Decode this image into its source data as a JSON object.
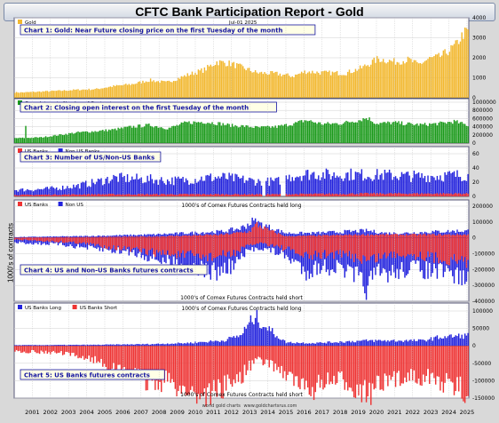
{
  "title": "CFTC Bank Participation Report - Gold",
  "y_axis_label": "1000's of contracts",
  "x_axis": {
    "years": [
      "2001",
      "2002",
      "2003",
      "2004",
      "2005",
      "2006",
      "2007",
      "2008",
      "2009",
      "2010",
      "2011",
      "2012",
      "2013",
      "2014",
      "2015",
      "2016",
      "2017",
      "2018",
      "2019",
      "2020",
      "2021",
      "2022",
      "2023",
      "2024",
      "2025"
    ]
  },
  "credit": "world gold charts",
  "credit_url": "www.goldchartsrus.com",
  "colors": {
    "gold": "#f2b82f",
    "green": "#1a9a1a",
    "blue": "#2222dd",
    "red": "#ee3333",
    "title_fill": "#ffffe6",
    "title_text": "#1414a0"
  },
  "chart_data": [
    {
      "id": "chart1",
      "type": "bar",
      "title": "Chart 1: Gold: Near Future closing price on the first Tuesday of the month",
      "legend": [
        {
          "label": "Gold",
          "color": "#f2b82f"
        }
      ],
      "date_label": "Jul-01  2025",
      "yticks": [
        "0",
        "1000",
        "2000",
        "3000",
        "4000"
      ],
      "ylim": [
        0,
        4000
      ],
      "x_start": 2000.5,
      "x_end": 2025.6,
      "anchors": [
        [
          2000.5,
          270
        ],
        [
          2001.0,
          265
        ],
        [
          2002.0,
          310
        ],
        [
          2003.0,
          350
        ],
        [
          2004.0,
          400
        ],
        [
          2005.0,
          430
        ],
        [
          2006.0,
          580
        ],
        [
          2007.0,
          680
        ],
        [
          2008.0,
          880
        ],
        [
          2008.9,
          760
        ],
        [
          2009.5,
          950
        ],
        [
          2010.0,
          1120
        ],
        [
          2011.0,
          1400
        ],
        [
          2011.7,
          1800
        ],
        [
          2012.5,
          1700
        ],
        [
          2013.3,
          1450
        ],
        [
          2013.9,
          1250
        ],
        [
          2015.0,
          1200
        ],
        [
          2015.9,
          1080
        ],
        [
          2016.6,
          1320
        ],
        [
          2017.5,
          1250
        ],
        [
          2018.8,
          1230
        ],
        [
          2019.7,
          1500
        ],
        [
          2020.6,
          1950
        ],
        [
          2021.5,
          1800
        ],
        [
          2022.3,
          1900
        ],
        [
          2022.8,
          1650
        ],
        [
          2023.4,
          1950
        ],
        [
          2024.0,
          2050
        ],
        [
          2024.5,
          2350
        ],
        [
          2024.9,
          2650
        ],
        [
          2025.3,
          3200
        ],
        [
          2025.6,
          3350
        ]
      ]
    },
    {
      "id": "chart2",
      "type": "bar",
      "title": "Chart 2: Closing open interest on the first Tuesday of the month",
      "legend": [
        {
          "label": "Open Interest - Number of Contracts",
          "color": "#1a9a1a"
        }
      ],
      "yticks": [
        "0",
        "200000",
        "400000",
        "600000",
        "800000",
        "1000000"
      ],
      "ylim": [
        0,
        1000000
      ],
      "x_start": 2000.5,
      "x_end": 2025.6,
      "anchors": [
        [
          2000.5,
          120000
        ],
        [
          2002.0,
          140000
        ],
        [
          2003.0,
          200000
        ],
        [
          2004.0,
          260000
        ],
        [
          2005.0,
          290000
        ],
        [
          2006.0,
          330000
        ],
        [
          2007.0,
          400000
        ],
        [
          2008.0,
          440000
        ],
        [
          2009.0,
          360000
        ],
        [
          2010.0,
          500000
        ],
        [
          2011.0,
          520000
        ],
        [
          2011.8,
          480000
        ],
        [
          2012.5,
          430000
        ],
        [
          2013.0,
          420000
        ],
        [
          2014.0,
          380000
        ],
        [
          2015.0,
          400000
        ],
        [
          2016.0,
          480000
        ],
        [
          2016.6,
          560000
        ],
        [
          2017.5,
          470000
        ],
        [
          2018.5,
          480000
        ],
        [
          2019.5,
          560000
        ],
        [
          2020.0,
          620000
        ],
        [
          2020.5,
          480000
        ],
        [
          2021.5,
          500000
        ],
        [
          2022.5,
          460000
        ],
        [
          2023.0,
          450000
        ],
        [
          2024.0,
          480000
        ],
        [
          2024.8,
          530000
        ],
        [
          2025.6,
          430000
        ]
      ]
    },
    {
      "id": "chart3",
      "type": "bar",
      "title": "Chart 3: Number of US/Non-US Banks",
      "legend": [
        {
          "label": "US Banks",
          "color": "#ee3333"
        },
        {
          "label": "Non US Banks",
          "color": "#2222dd"
        }
      ],
      "yticks": [
        "0",
        "20",
        "40",
        "60"
      ],
      "ylim": [
        0,
        60
      ],
      "x_start": 2000.5,
      "x_end": 2025.6,
      "gaps": [
        [
          2014.2,
          2014.35
        ],
        [
          2015.2,
          2015.45
        ]
      ],
      "series": [
        {
          "name": "Non US Banks",
          "color": "#2222dd",
          "anchors": [
            [
              2000.5,
              9
            ],
            [
              2002.0,
              10
            ],
            [
              2003.0,
              12
            ],
            [
              2004.0,
              15
            ],
            [
              2005.0,
              20
            ],
            [
              2006.0,
              26
            ],
            [
              2007.0,
              25
            ],
            [
              2008.0,
              24
            ],
            [
              2009.0,
              22
            ],
            [
              2010.0,
              23
            ],
            [
              2011.0,
              26
            ],
            [
              2012.0,
              27
            ],
            [
              2013.0,
              24
            ],
            [
              2014.0,
              21
            ],
            [
              2015.0,
              21
            ],
            [
              2016.0,
              30
            ],
            [
              2017.0,
              32
            ],
            [
              2018.0,
              30
            ],
            [
              2019.0,
              31
            ],
            [
              2020.0,
              30
            ],
            [
              2021.0,
              30
            ],
            [
              2022.0,
              29
            ],
            [
              2023.0,
              28
            ],
            [
              2024.0,
              29
            ],
            [
              2025.6,
              30
            ]
          ]
        },
        {
          "name": "US Banks",
          "color": "#ee3333",
          "anchors": [
            [
              2000.5,
              2
            ],
            [
              2005.0,
              3
            ],
            [
              2010.0,
              3
            ],
            [
              2015.0,
              3
            ],
            [
              2020.0,
              4
            ],
            [
              2025.6,
              4
            ]
          ]
        }
      ]
    },
    {
      "id": "chart4",
      "type": "bar",
      "title": "Chart 4: US and Non-US Banks futures contracts",
      "legend": [
        {
          "label": "US Banks",
          "color": "#ee3333"
        },
        {
          "label": "Non US",
          "color": "#2222dd"
        }
      ],
      "top_note": "1000's of Comex Futures Contracts held long",
      "bottom_note": "1000's of Comex Futures Contracts held short",
      "yticks": [
        "200000",
        "100000",
        "0",
        "-100000",
        "-200000",
        "-300000",
        "-400000"
      ],
      "ylim": [
        -400000,
        200000
      ],
      "x_start": 2000.5,
      "x_end": 2025.6,
      "series": [
        {
          "name": "Non US long",
          "color": "#2222dd",
          "anchors": [
            [
              2000.5,
              5000
            ],
            [
              2004.0,
              10000
            ],
            [
              2008.0,
              20000
            ],
            [
              2010.0,
              30000
            ],
            [
              2012.0,
              40000
            ],
            [
              2013.0,
              60000
            ],
            [
              2013.7,
              105000
            ],
            [
              2014.5,
              70000
            ],
            [
              2015.5,
              30000
            ],
            [
              2017.0,
              30000
            ],
            [
              2019.0,
              40000
            ],
            [
              2020.0,
              45000
            ],
            [
              2021.0,
              30000
            ],
            [
              2022.0,
              30000
            ],
            [
              2023.0,
              35000
            ],
            [
              2024.0,
              40000
            ],
            [
              2025.6,
              45000
            ]
          ]
        },
        {
          "name": "US long",
          "color": "#ee3333",
          "anchors": [
            [
              2000.5,
              2000
            ],
            [
              2008.0,
              8000
            ],
            [
              2012.0,
              20000
            ],
            [
              2013.5,
              40000
            ],
            [
              2013.9,
              85000
            ],
            [
              2014.5,
              50000
            ],
            [
              2015.5,
              10000
            ],
            [
              2020.0,
              20000
            ],
            [
              2025.6,
              20000
            ]
          ]
        },
        {
          "name": "Non US short",
          "color": "#2222dd",
          "anchors": [
            [
              2000.5,
              -30000
            ],
            [
              2003.0,
              -40000
            ],
            [
              2005.0,
              -70000
            ],
            [
              2006.0,
              -80000
            ],
            [
              2007.0,
              -90000
            ],
            [
              2008.0,
              -120000
            ],
            [
              2009.0,
              -150000
            ],
            [
              2010.0,
              -170000
            ],
            [
              2011.0,
              -200000
            ],
            [
              2011.6,
              -220000
            ],
            [
              2012.5,
              -180000
            ],
            [
              2013.5,
              -80000
            ],
            [
              2014.0,
              -60000
            ],
            [
              2015.0,
              -90000
            ],
            [
              2016.0,
              -150000
            ],
            [
              2016.6,
              -210000
            ],
            [
              2017.5,
              -180000
            ],
            [
              2018.5,
              -190000
            ],
            [
              2019.5,
              -260000
            ],
            [
              2020.0,
              -310000
            ],
            [
              2020.5,
              -230000
            ],
            [
              2021.5,
              -220000
            ],
            [
              2022.5,
              -180000
            ],
            [
              2023.0,
              -200000
            ],
            [
              2024.0,
              -220000
            ],
            [
              2025.0,
              -240000
            ],
            [
              2025.6,
              -260000
            ]
          ]
        },
        {
          "name": "US short",
          "color": "#ee3333",
          "anchors": [
            [
              2000.5,
              -10000
            ],
            [
              2004.0,
              -30000
            ],
            [
              2006.0,
              -60000
            ],
            [
              2008.0,
              -90000
            ],
            [
              2010.0,
              -110000
            ],
            [
              2011.5,
              -120000
            ],
            [
              2012.5,
              -100000
            ],
            [
              2013.5,
              -50000
            ],
            [
              2014.0,
              -30000
            ],
            [
              2015.0,
              -50000
            ],
            [
              2016.0,
              -90000
            ],
            [
              2016.6,
              -120000
            ],
            [
              2018.0,
              -100000
            ],
            [
              2019.0,
              -110000
            ],
            [
              2020.0,
              -140000
            ],
            [
              2021.0,
              -110000
            ],
            [
              2022.0,
              -100000
            ],
            [
              2023.0,
              -110000
            ],
            [
              2024.0,
              -130000
            ],
            [
              2025.6,
              -150000
            ]
          ]
        }
      ]
    },
    {
      "id": "chart5",
      "type": "bar",
      "title": "Chart 5: US Banks futures contracts",
      "legend": [
        {
          "label": "US Banks Long",
          "color": "#2222dd"
        },
        {
          "label": "US Banks Short",
          "color": "#ee3333"
        }
      ],
      "top_note": "1000's of Comex Futures Contracts held long",
      "bottom_note": "1000's of Comex Futures Contracts held short",
      "yticks": [
        "100000",
        "50000",
        "0",
        "-50000",
        "-100000",
        "-150000"
      ],
      "ylim": [
        -150000,
        100000
      ],
      "x_start": 2000.5,
      "x_end": 2025.6,
      "series": [
        {
          "name": "US Banks Long",
          "color": "#2222dd",
          "anchors": [
            [
              2000.5,
              2000
            ],
            [
              2005.0,
              3000
            ],
            [
              2008.0,
              5000
            ],
            [
              2010.0,
              8000
            ],
            [
              2012.0,
              15000
            ],
            [
              2013.0,
              30000
            ],
            [
              2013.8,
              85000
            ],
            [
              2014.5,
              50000
            ],
            [
              2015.5,
              10000
            ],
            [
              2017.0,
              8000
            ],
            [
              2020.0,
              15000
            ],
            [
              2023.0,
              15000
            ],
            [
              2024.0,
              25000
            ],
            [
              2025.6,
              30000
            ]
          ]
        },
        {
          "name": "US Banks Short",
          "color": "#ee3333",
          "anchors": [
            [
              2000.5,
              -15000
            ],
            [
              2003.0,
              -20000
            ],
            [
              2005.0,
              -40000
            ],
            [
              2006.0,
              -70000
            ],
            [
              2007.0,
              -80000
            ],
            [
              2008.0,
              -110000
            ],
            [
              2009.0,
              -100000
            ],
            [
              2010.0,
              -130000
            ],
            [
              2011.0,
              -140000
            ],
            [
              2012.0,
              -120000
            ],
            [
              2013.0,
              -90000
            ],
            [
              2013.8,
              -40000
            ],
            [
              2014.5,
              -50000
            ],
            [
              2015.0,
              -60000
            ],
            [
              2016.0,
              -100000
            ],
            [
              2016.6,
              -130000
            ],
            [
              2017.5,
              -110000
            ],
            [
              2018.5,
              -100000
            ],
            [
              2019.5,
              -120000
            ],
            [
              2020.0,
              -140000
            ],
            [
              2020.5,
              -120000
            ],
            [
              2021.5,
              -100000
            ],
            [
              2022.5,
              -80000
            ],
            [
              2023.0,
              -90000
            ],
            [
              2024.0,
              -100000
            ],
            [
              2024.8,
              -120000
            ],
            [
              2025.6,
              -130000
            ]
          ]
        }
      ]
    }
  ]
}
